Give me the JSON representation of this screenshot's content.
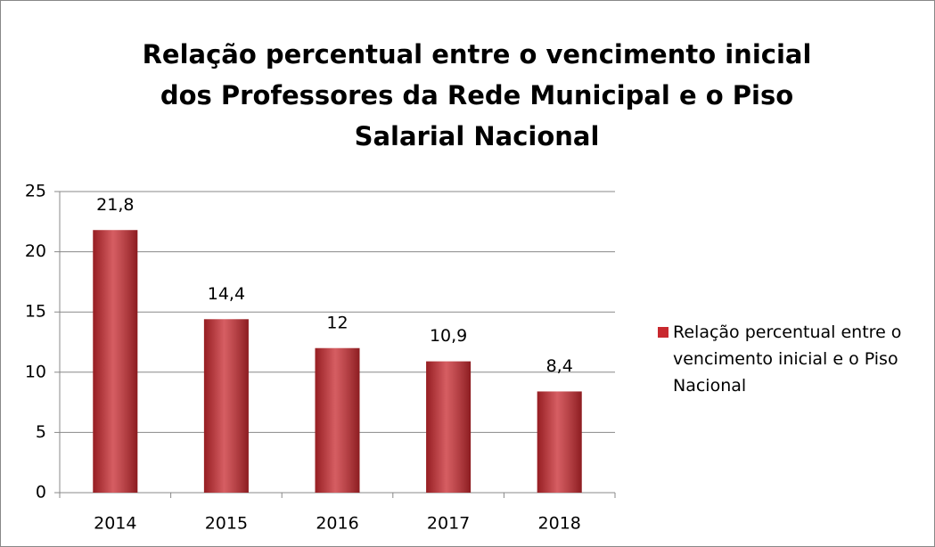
{
  "chart_data": {
    "type": "bar",
    "title": "Relação percentual entre o vencimento inicial dos Professores da Rede Municipal e o Piso Salarial Nacional",
    "categories": [
      "2014",
      "2015",
      "2016",
      "2017",
      "2018"
    ],
    "series": [
      {
        "name": "Relação percentual entre o vencimento inicial e o Piso Nacional",
        "color": "#c8282e",
        "values": [
          21.8,
          14.4,
          12,
          10.9,
          8.4
        ],
        "value_labels": [
          "21,8",
          "14,4",
          "12",
          "10,9",
          "8,4"
        ]
      }
    ],
    "ylim": [
      0,
      25
    ],
    "yticks": [
      0,
      5,
      10,
      15,
      20,
      25
    ],
    "grid": true,
    "legend": "right"
  }
}
